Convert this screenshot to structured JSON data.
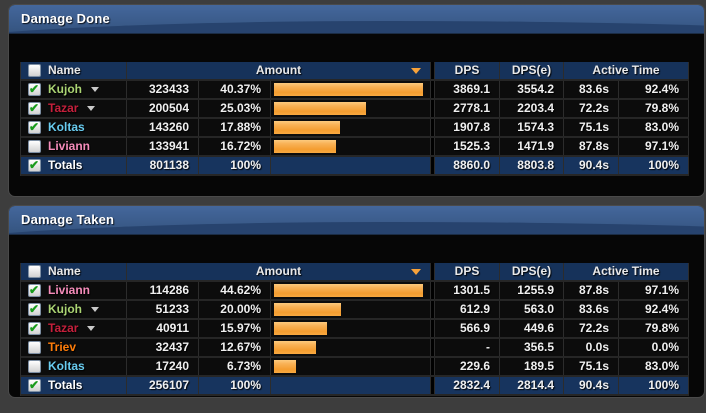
{
  "colors": {
    "accent_bar": "#f8a940",
    "header_row_bg": "#16325a",
    "titlebar_blue": "#35547f",
    "class_hunter": "#abd473",
    "class_deathknight": "#c41f3b",
    "class_mage": "#69ccf0",
    "class_paladin": "#f58cba",
    "class_druid": "#ff7d0a"
  },
  "panel1": {
    "title": "Damage Done",
    "select_all_checked": false,
    "header": {
      "name": "Name",
      "amount": "Amount",
      "dps": "DPS",
      "dpse": "DPS(e)",
      "active": "Active Time"
    },
    "rows": [
      {
        "name": "Kujoh",
        "color": "#abd473",
        "checked": true,
        "expand": true,
        "amount": "323433",
        "pct": "40.37%",
        "bar": 100,
        "dps": "3869.1",
        "dpse": "3554.2",
        "secs": "83.6s",
        "active_pct": "92.4%"
      },
      {
        "name": "Tazar",
        "color": "#c41f3b",
        "checked": true,
        "expand": true,
        "amount": "200504",
        "pct": "25.03%",
        "bar": 62,
        "dps": "2778.1",
        "dpse": "2203.4",
        "secs": "72.2s",
        "active_pct": "79.8%"
      },
      {
        "name": "Koltas",
        "color": "#69ccf0",
        "checked": true,
        "expand": false,
        "amount": "143260",
        "pct": "17.88%",
        "bar": 44.3,
        "dps": "1907.8",
        "dpse": "1574.3",
        "secs": "75.1s",
        "active_pct": "83.0%"
      },
      {
        "name": "Liviann",
        "color": "#f58cba",
        "checked": false,
        "expand": false,
        "amount": "133941",
        "pct": "16.72%",
        "bar": 41.4,
        "dps": "1525.3",
        "dpse": "1471.9",
        "secs": "87.8s",
        "active_pct": "97.1%"
      }
    ],
    "totals": {
      "label": "Totals",
      "checked": true,
      "amount": "801138",
      "pct": "100%",
      "dps": "8860.0",
      "dpse": "8803.8",
      "secs": "90.4s",
      "active_pct": "100%"
    }
  },
  "panel2": {
    "title": "Damage Taken",
    "select_all_checked": false,
    "header": {
      "name": "Name",
      "amount": "Amount",
      "dps": "DPS",
      "dpse": "DPS(e)",
      "active": "Active Time"
    },
    "rows": [
      {
        "name": "Liviann",
        "color": "#f58cba",
        "checked": true,
        "expand": false,
        "amount": "114286",
        "pct": "44.62%",
        "bar": 100,
        "dps": "1301.5",
        "dpse": "1255.9",
        "secs": "87.8s",
        "active_pct": "97.1%"
      },
      {
        "name": "Kujoh",
        "color": "#abd473",
        "checked": true,
        "expand": true,
        "amount": "51233",
        "pct": "20.00%",
        "bar": 44.8,
        "dps": "612.9",
        "dpse": "563.0",
        "secs": "83.6s",
        "active_pct": "92.4%"
      },
      {
        "name": "Tazar",
        "color": "#c41f3b",
        "checked": true,
        "expand": true,
        "amount": "40911",
        "pct": "15.97%",
        "bar": 35.8,
        "dps": "566.9",
        "dpse": "449.6",
        "secs": "72.2s",
        "active_pct": "79.8%"
      },
      {
        "name": "Triev",
        "color": "#ff7d0a",
        "checked": false,
        "expand": false,
        "amount": "32437",
        "pct": "12.67%",
        "bar": 28.4,
        "dps": "-",
        "dpse": "356.5",
        "secs": "0.0s",
        "active_pct": "0.0%"
      },
      {
        "name": "Koltas",
        "color": "#69ccf0",
        "checked": false,
        "expand": false,
        "amount": "17240",
        "pct": "6.73%",
        "bar": 15.1,
        "dps": "229.6",
        "dpse": "189.5",
        "secs": "75.1s",
        "active_pct": "83.0%"
      }
    ],
    "totals": {
      "label": "Totals",
      "checked": true,
      "amount": "256107",
      "pct": "100%",
      "dps": "2832.4",
      "dpse": "2814.4",
      "secs": "90.4s",
      "active_pct": "100%"
    }
  }
}
